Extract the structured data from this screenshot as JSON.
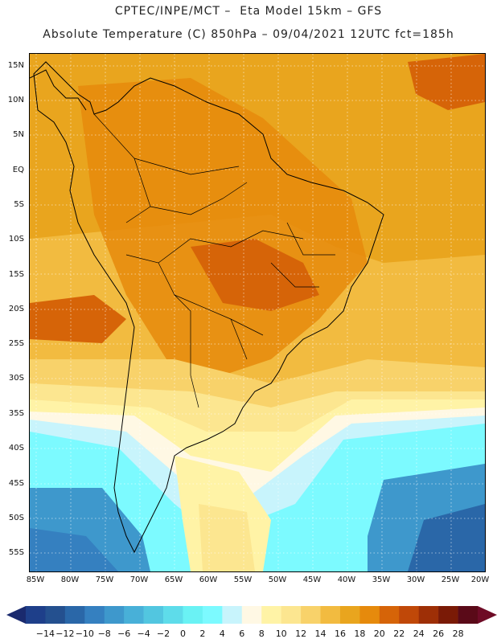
{
  "header": {
    "line1": "CPTEC/INPE/MCT –  Eta Model 15km – GFS",
    "line2": "Absolute Temperature (C) 850hPa – 09/04/2021 12UTC fct=185h"
  },
  "map": {
    "lat_labels": [
      "15N",
      "10N",
      "5N",
      "EQ",
      "5S",
      "10S",
      "15S",
      "20S",
      "25S",
      "30S",
      "35S",
      "40S",
      "45S",
      "50S",
      "55S"
    ],
    "lon_labels": [
      "85W",
      "80W",
      "75W",
      "70W",
      "65W",
      "60W",
      "55W",
      "50W",
      "45W",
      "40W",
      "35W",
      "30W",
      "25W",
      "20W"
    ]
  },
  "colorbar": {
    "labels": [
      "-14",
      "-12",
      "-10",
      "-8",
      "-6",
      "-4",
      "-2",
      "0",
      "2",
      "4",
      "6",
      "8",
      "10",
      "12",
      "14",
      "16",
      "18",
      "20",
      "22",
      "24",
      "26",
      "28"
    ],
    "colors": [
      "#1e3f8a",
      "#24508f",
      "#2a67a8",
      "#3580c0",
      "#3e98cc",
      "#48b0d8",
      "#52c6e0",
      "#5edcea",
      "#6af2f4",
      "#7cfaff",
      "#c8f4fc",
      "#fff8e4",
      "#fff3a6",
      "#fce690",
      "#f8d26a",
      "#f2bb40",
      "#e9a51e",
      "#e68a0c",
      "#d66408",
      "#c04808",
      "#9e2f06",
      "#7a1a06",
      "#5a0a18"
    ],
    "left_arrow_color": "#1a2a6e",
    "right_arrow_color": "#6e0b26"
  }
}
